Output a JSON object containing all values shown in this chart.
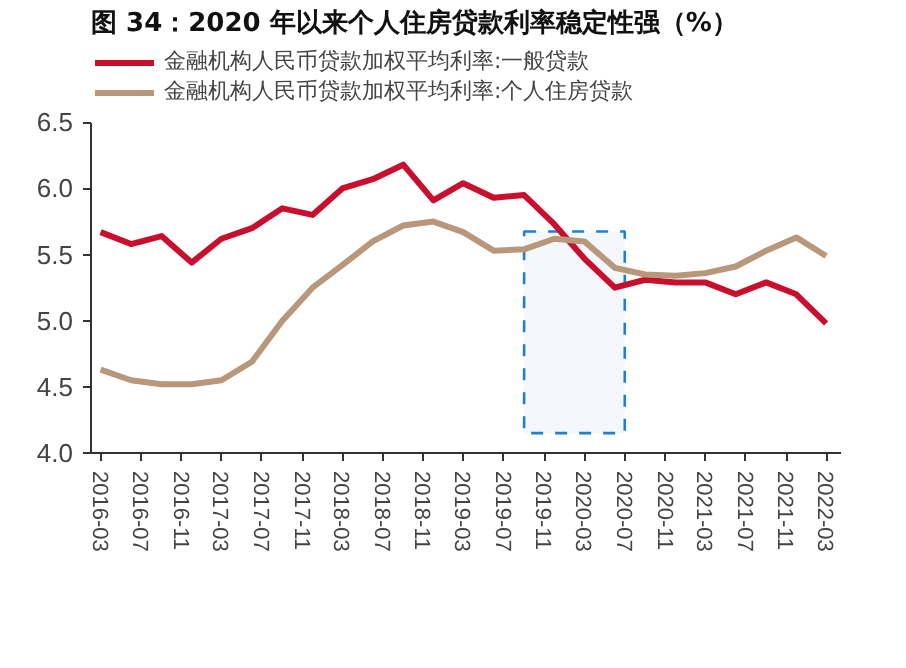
{
  "chart_data": {
    "type": "line",
    "title": "图 34：2020 年以来个人住房贷款利率稳定性强（%）",
    "x": [
      "2016-03",
      "2016-06",
      "2016-09",
      "2016-12",
      "2017-03",
      "2017-06",
      "2017-09",
      "2017-12",
      "2018-03",
      "2018-06",
      "2018-09",
      "2018-12",
      "2019-03",
      "2019-06",
      "2019-09",
      "2019-12",
      "2020-03",
      "2020-06",
      "2020-09",
      "2020-12",
      "2021-03",
      "2021-06",
      "2021-09",
      "2021-12",
      "2022-03"
    ],
    "series": [
      {
        "name": "金融机构人民币贷款加权平均利率:一般贷款",
        "color": "#c8102e",
        "values": [
          5.67,
          5.58,
          5.64,
          5.44,
          5.62,
          5.7,
          5.85,
          5.8,
          6.0,
          6.07,
          6.18,
          5.91,
          6.04,
          5.93,
          5.95,
          5.73,
          5.47,
          5.25,
          5.31,
          5.29,
          5.29,
          5.2,
          5.29,
          5.2,
          4.98
        ]
      },
      {
        "name": "金融机构人民币贷款加权平均利率:个人住房贷款",
        "color": "#b8977a",
        "values": [
          4.63,
          4.55,
          4.52,
          4.52,
          4.55,
          4.69,
          5.0,
          5.25,
          5.42,
          5.6,
          5.72,
          5.75,
          5.67,
          5.53,
          5.54,
          5.62,
          5.6,
          5.4,
          5.35,
          5.34,
          5.36,
          5.41,
          5.53,
          5.63,
          5.49
        ]
      }
    ],
    "xlim": [
      "2016-02-01",
      "2022-04-15"
    ],
    "xticks": [
      "2016-03",
      "2016-07",
      "2016-11",
      "2017-03",
      "2017-07",
      "2017-11",
      "2018-03",
      "2018-07",
      "2018-11",
      "2019-03",
      "2019-07",
      "2019-11",
      "2020-03",
      "2020-07",
      "2020-11",
      "2021-03",
      "2021-07",
      "2021-11",
      "2022-03"
    ],
    "ylim": [
      4.0,
      6.5
    ],
    "yticks": [
      {
        "value": 4,
        "label": "4.0"
      },
      4.5,
      {
        "value": 5,
        "label": "5.0"
      },
      5.5,
      {
        "value": 6,
        "label": "6.0"
      },
      6.5
    ],
    "bands": [
      {
        "axis": "x",
        "from": "2019-09",
        "to": "2020-07",
        "color": "#1f7fd0"
      }
    ],
    "grid": false,
    "legend": "top",
    "line_style": "solid",
    "marker": "none"
  }
}
